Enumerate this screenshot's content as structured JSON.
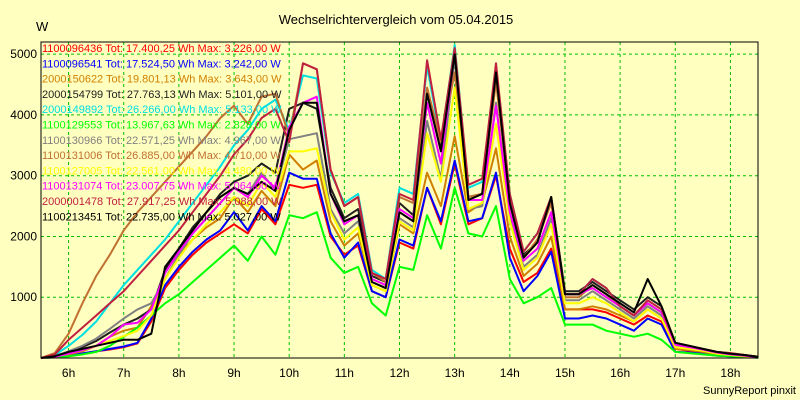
{
  "chart_data": {
    "type": "line",
    "title": "Wechselrichtervergleich vom 05.04.2015",
    "ylabel": "W",
    "xlabel": "",
    "footer": "SunnyReport pinxit",
    "ylim": [
      0,
      5200
    ],
    "xlim": [
      5.5,
      18.5
    ],
    "y_ticks": [
      1000,
      2000,
      3000,
      4000,
      5000
    ],
    "x_ticks": [
      6,
      7,
      8,
      9,
      10,
      11,
      12,
      13,
      14,
      15,
      16,
      17,
      18
    ],
    "x_tick_labels": [
      "6h",
      "7h",
      "8h",
      "9h",
      "10h",
      "11h",
      "12h",
      "13h",
      "14h",
      "15h",
      "16h",
      "17h",
      "18h"
    ],
    "grid": true,
    "legend_position": "top-left",
    "x": [
      5.5,
      5.75,
      6.0,
      6.25,
      6.5,
      6.75,
      7.0,
      7.25,
      7.5,
      7.75,
      8.0,
      8.25,
      8.5,
      8.75,
      9.0,
      9.25,
      9.5,
      9.75,
      10.0,
      10.25,
      10.5,
      10.75,
      11.0,
      11.25,
      11.5,
      11.75,
      12.0,
      12.25,
      12.5,
      12.75,
      13.0,
      13.25,
      13.5,
      13.75,
      14.0,
      14.25,
      14.5,
      14.75,
      15.0,
      15.25,
      15.5,
      15.75,
      16.0,
      16.25,
      16.5,
      16.75,
      17.0,
      17.25,
      17.5,
      17.75,
      18.0,
      18.25,
      18.5
    ],
    "series": [
      {
        "name": "1100096436",
        "label": "1100096436 Tot: 17.400,25 Wh Max: 3.226,00 W",
        "color": "#ff0000",
        "values": [
          0,
          10,
          40,
          70,
          110,
          140,
          180,
          240,
          600,
          1150,
          1450,
          1700,
          1900,
          2050,
          2200,
          2050,
          2450,
          2200,
          2850,
          2800,
          2850,
          2000,
          1700,
          1850,
          1100,
          1000,
          1900,
          1800,
          2800,
          2200,
          3200,
          2200,
          2300,
          3000,
          1800,
          1250,
          1400,
          1800,
          800,
          800,
          800,
          750,
          650,
          550,
          700,
          600,
          150,
          120,
          100,
          50,
          40,
          30,
          10
        ]
      },
      {
        "name": "1100096541",
        "label": "1100096541 Tot: 17.524,50 Wh Max: 3.242,00 W",
        "color": "#0000ff",
        "values": [
          0,
          10,
          40,
          75,
          110,
          150,
          190,
          250,
          650,
          1200,
          1500,
          1750,
          1950,
          2100,
          2400,
          2100,
          2500,
          2250,
          3050,
          2950,
          2950,
          2050,
          1650,
          1900,
          1100,
          1000,
          1950,
          1850,
          2800,
          2250,
          3250,
          2250,
          2300,
          3050,
          1650,
          1100,
          1350,
          1750,
          650,
          650,
          700,
          650,
          550,
          450,
          650,
          550,
          100,
          90,
          70,
          40,
          30,
          20,
          5
        ]
      },
      {
        "name": "2000150622",
        "label": "2000150622 Tot: 19.801,13 Wh Max: 3.643,00 W",
        "color": "#d08000",
        "values": [
          0,
          20,
          60,
          110,
          200,
          350,
          450,
          500,
          850,
          1300,
          1700,
          1950,
          2150,
          2300,
          2650,
          2400,
          2750,
          2500,
          3350,
          3100,
          3250,
          2250,
          1850,
          2050,
          1200,
          1100,
          2200,
          2050,
          3050,
          2500,
          3650,
          2400,
          2550,
          3450,
          2000,
          1350,
          1550,
          2000,
          800,
          800,
          850,
          800,
          700,
          600,
          800,
          650,
          150,
          130,
          100,
          60,
          40,
          30,
          10
        ]
      },
      {
        "name": "2000154799",
        "label": "2000154799 Tot: 27.763,13 Wh Max: 5.101,00 W",
        "color": "#202020",
        "values": [
          0,
          30,
          100,
          180,
          280,
          420,
          550,
          650,
          800,
          1450,
          1800,
          2150,
          2400,
          2700,
          2900,
          3000,
          3200,
          3050,
          4100,
          4200,
          4100,
          2800,
          2300,
          2450,
          1350,
          1250,
          2550,
          2350,
          4400,
          3450,
          5100,
          2650,
          2700,
          4650,
          2600,
          1700,
          1900,
          2650,
          1100,
          1100,
          1250,
          1100,
          950,
          800,
          1000,
          850,
          250,
          200,
          150,
          100,
          70,
          50,
          20
        ]
      },
      {
        "name": "2000149892",
        "label": "2000149892 Tot: 26.266,00 Wh Max: 5.133,00 W",
        "color": "#00e0e0",
        "values": [
          0,
          50,
          200,
          380,
          600,
          900,
          1200,
          1450,
          1700,
          1950,
          2250,
          2550,
          2850,
          3150,
          3500,
          3750,
          4100,
          4250,
          3750,
          4650,
          4600,
          3050,
          2550,
          2700,
          1450,
          1300,
          2800,
          2700,
          4800,
          3550,
          5150,
          2800,
          2900,
          4800,
          2700,
          1750,
          2050,
          2600,
          1050,
          1050,
          1300,
          1150,
          850,
          700,
          900,
          750,
          250,
          200,
          150,
          100,
          80,
          50,
          20
        ]
      },
      {
        "name": "1100129553",
        "label": "1100129553 Tot: 13.967,63 Wh Max: 2.828,00 W",
        "color": "#00ff00",
        "values": [
          0,
          10,
          30,
          60,
          100,
          200,
          350,
          500,
          700,
          900,
          1050,
          1250,
          1450,
          1650,
          1850,
          1600,
          2000,
          1700,
          2350,
          2300,
          2400,
          1650,
          1400,
          1500,
          900,
          700,
          1500,
          1450,
          2350,
          1800,
          2800,
          2050,
          2000,
          2500,
          1300,
          900,
          1000,
          1150,
          550,
          550,
          550,
          450,
          400,
          350,
          400,
          300,
          100,
          80,
          60,
          40,
          30,
          20,
          5
        ]
      },
      {
        "name": "1100130966",
        "label": "1100130966 Tot: 22.571,25 Wh Max: 4.967,00 W",
        "color": "#808080",
        "values": [
          0,
          30,
          110,
          200,
          320,
          480,
          650,
          800,
          900,
          1300,
          1700,
          2050,
          2300,
          2550,
          2800,
          2700,
          3050,
          2750,
          3600,
          3650,
          3700,
          2450,
          2050,
          2250,
          1250,
          1150,
          2300,
          2150,
          3900,
          2950,
          4950,
          2450,
          2500,
          4200,
          2300,
          1500,
          1700,
          2300,
          950,
          950,
          1100,
          950,
          800,
          650,
          850,
          700,
          200,
          160,
          130,
          80,
          60,
          40,
          15
        ]
      },
      {
        "name": "1100131006",
        "label": "1100131006 Tot: 26.885,00 Wh Max: 4.710,00 W",
        "color": "#c07030",
        "values": [
          0,
          80,
          400,
          900,
          1350,
          1700,
          2100,
          2400,
          2650,
          2900,
          3150,
          3400,
          3650,
          3950,
          4150,
          3850,
          4300,
          4350,
          3650,
          4850,
          4750,
          3100,
          2500,
          2650,
          1400,
          1250,
          2650,
          2550,
          4450,
          3550,
          4700,
          2650,
          2700,
          4550,
          2550,
          1650,
          1950,
          2550,
          1000,
          1000,
          1200,
          1050,
          850,
          700,
          900,
          750,
          250,
          200,
          150,
          100,
          80,
          50,
          20
        ]
      },
      {
        "name": "1100127005",
        "label": "1100127005 Tot: 22.561,00 Wh Max: 4.480,00 W",
        "color": "#ffff00",
        "values": [
          0,
          20,
          70,
          130,
          200,
          280,
          360,
          450,
          700,
          1300,
          1650,
          1950,
          2200,
          2400,
          2650,
          2500,
          2900,
          2650,
          3400,
          3400,
          3450,
          2400,
          1950,
          2150,
          1200,
          1100,
          2250,
          2100,
          3700,
          2900,
          4450,
          2450,
          2550,
          3850,
          2250,
          1450,
          1650,
          2200,
          900,
          900,
          1000,
          900,
          750,
          600,
          800,
          650,
          180,
          150,
          120,
          70,
          50,
          30,
          10
        ]
      },
      {
        "name": "1100131074",
        "label": "1100131074 Tot: 23.007,75 Wh Max: 5.064,00 W",
        "color": "#ff00ff",
        "values": [
          0,
          20,
          70,
          130,
          200,
          350,
          550,
          580,
          800,
          1400,
          1750,
          2050,
          2300,
          2550,
          2800,
          2650,
          3000,
          2800,
          3800,
          4200,
          4300,
          2700,
          2200,
          2350,
          1300,
          1200,
          2450,
          2300,
          4200,
          3200,
          5050,
          2600,
          2600,
          4150,
          2400,
          1600,
          1800,
          2400,
          1050,
          1050,
          1150,
          1000,
          850,
          700,
          900,
          750,
          220,
          180,
          140,
          90,
          60,
          40,
          15
        ]
      },
      {
        "name": "2000001478",
        "label": "2000001478 Tot: 27.917,25 Wh Max: 5.088,00 W",
        "color": "#c02040",
        "values": [
          0,
          60,
          300,
          500,
          700,
          900,
          1100,
          1350,
          1600,
          1850,
          2100,
          2400,
          2700,
          3000,
          3350,
          3600,
          3950,
          4100,
          3550,
          4850,
          4750,
          3100,
          2500,
          2650,
          1400,
          1300,
          2700,
          2600,
          4900,
          3600,
          5100,
          2850,
          2950,
          4850,
          2700,
          1750,
          2050,
          2650,
          1050,
          1050,
          1300,
          1150,
          850,
          700,
          950,
          800,
          250,
          200,
          150,
          100,
          80,
          50,
          20
        ]
      },
      {
        "name": "1100213451",
        "label": "1100213451 Tot: 22.735,00 Wh Max: 5.027,00 W",
        "color": "#000000",
        "values": [
          0,
          30,
          100,
          150,
          200,
          250,
          300,
          300,
          400,
          1500,
          1800,
          2100,
          2400,
          2650,
          2800,
          2700,
          2900,
          2750,
          3750,
          4200,
          4200,
          2700,
          2250,
          2350,
          1250,
          1150,
          2400,
          2250,
          4350,
          3400,
          5000,
          2600,
          2700,
          4700,
          2550,
          1650,
          1900,
          2650,
          1050,
          1050,
          1200,
          1050,
          900,
          750,
          1300,
          850,
          250,
          200,
          150,
          100,
          70,
          50,
          20
        ]
      }
    ]
  }
}
